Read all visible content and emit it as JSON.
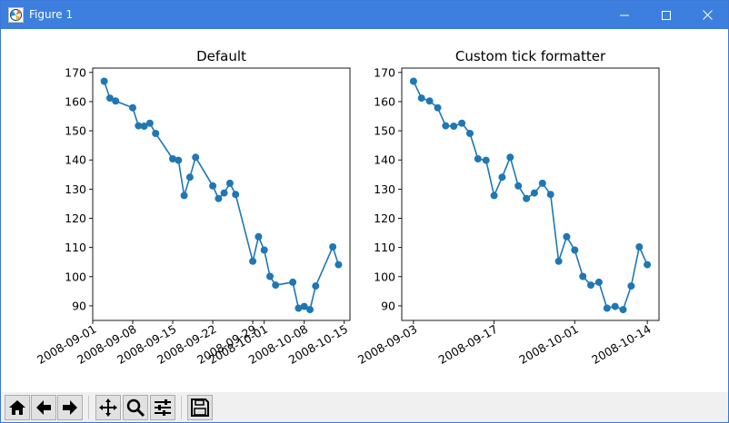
{
  "window": {
    "title": "Figure 1",
    "accent_color": "#3c7fde",
    "buttons": [
      "minimize-icon",
      "maximize-icon",
      "close-icon"
    ]
  },
  "toolbar": {
    "icons": [
      "home-icon",
      "back-arrow-icon",
      "forward-arrow-icon",
      "pan-icon",
      "zoom-icon",
      "configure-subplots-icon",
      "save-icon"
    ]
  },
  "chart_data": [
    {
      "type": "line",
      "title": "Default",
      "xlabel": "",
      "ylabel": "",
      "series_color": "#1f77b4",
      "x": [
        "2008-09-03",
        "2008-09-04",
        "2008-09-05",
        "2008-09-08",
        "2008-09-09",
        "2008-09-10",
        "2008-09-11",
        "2008-09-12",
        "2008-09-15",
        "2008-09-16",
        "2008-09-17",
        "2008-09-18",
        "2008-09-19",
        "2008-09-22",
        "2008-09-23",
        "2008-09-24",
        "2008-09-25",
        "2008-09-26",
        "2008-09-29",
        "2008-09-30",
        "2008-10-01",
        "2008-10-02",
        "2008-10-03",
        "2008-10-06",
        "2008-10-07",
        "2008-10-08",
        "2008-10-09",
        "2008-10-10",
        "2008-10-13",
        "2008-10-14"
      ],
      "y": [
        167.0,
        161.2,
        160.2,
        157.9,
        151.7,
        151.6,
        152.6,
        149.1,
        140.4,
        139.9,
        127.8,
        134.1,
        140.9,
        131.1,
        126.8,
        128.7,
        132.0,
        128.2,
        105.3,
        113.7,
        109.1,
        100.1,
        97.1,
        98.1,
        89.2,
        89.8,
        88.7,
        96.8,
        110.2,
        104.1
      ],
      "yticks": [
        90,
        100,
        110,
        120,
        130,
        140,
        150,
        160,
        170
      ],
      "ylim": [
        85,
        171.5
      ],
      "xticks": [
        "2008-09-01",
        "2008-09-08",
        "2008-09-15",
        "2008-09-22",
        "2008-09-29",
        "2008-10-01",
        "2008-10-08",
        "2008-10-15"
      ],
      "xlim": [
        "2008-09-01",
        "2008-10-16"
      ],
      "tick_label_rotation": 30
    },
    {
      "type": "line",
      "title": "Custom tick formatter",
      "xlabel": "",
      "ylabel": "",
      "series_color": "#1f77b4",
      "x_axis_note": "points equally spaced by index; labels show the date of the index",
      "x": [
        "2008-09-03",
        "2008-09-04",
        "2008-09-05",
        "2008-09-08",
        "2008-09-09",
        "2008-09-10",
        "2008-09-11",
        "2008-09-12",
        "2008-09-15",
        "2008-09-16",
        "2008-09-17",
        "2008-09-18",
        "2008-09-19",
        "2008-09-22",
        "2008-09-23",
        "2008-09-24",
        "2008-09-25",
        "2008-09-26",
        "2008-09-29",
        "2008-09-30",
        "2008-10-01",
        "2008-10-02",
        "2008-10-03",
        "2008-10-06",
        "2008-10-07",
        "2008-10-08",
        "2008-10-09",
        "2008-10-10",
        "2008-10-13",
        "2008-10-14"
      ],
      "y": [
        167.0,
        161.2,
        160.2,
        157.9,
        151.7,
        151.6,
        152.6,
        149.1,
        140.4,
        139.9,
        127.8,
        134.1,
        140.9,
        131.1,
        126.8,
        128.7,
        132.0,
        128.2,
        105.3,
        113.7,
        109.1,
        100.1,
        97.1,
        98.1,
        89.2,
        89.8,
        88.7,
        96.8,
        110.2,
        104.1
      ],
      "yticks": [
        90,
        100,
        110,
        120,
        130,
        140,
        150,
        160,
        170
      ],
      "ylim": [
        85,
        171.5
      ],
      "xticks": [
        "2008-09-03",
        "2008-09-17",
        "2008-10-01",
        "2008-10-14"
      ],
      "tick_label_rotation": 30
    }
  ]
}
